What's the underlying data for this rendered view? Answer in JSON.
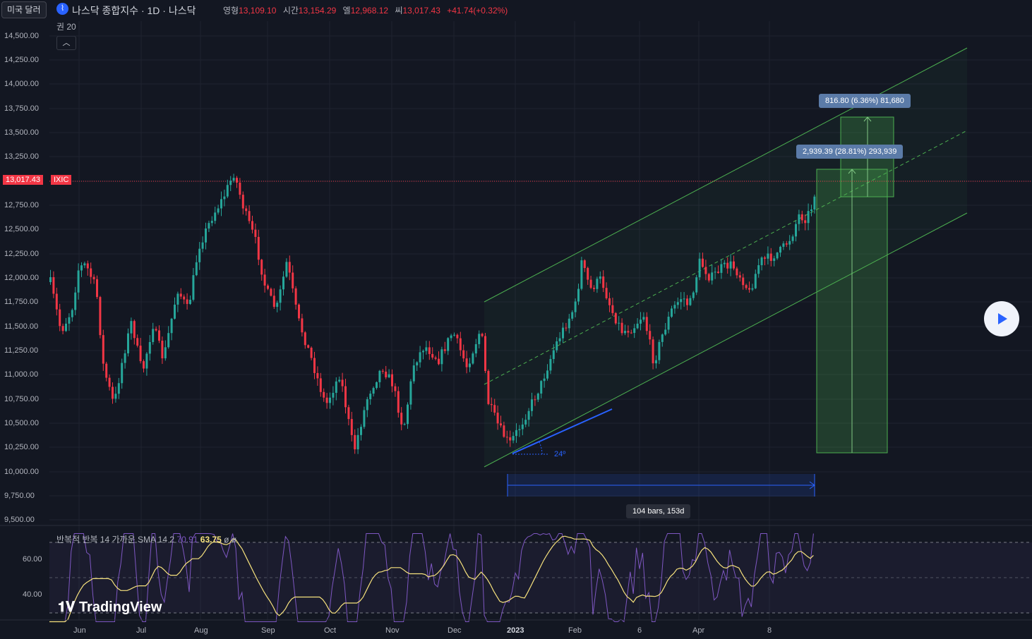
{
  "header": {
    "currency_label": "미국 달러",
    "symbol_title": "나스닥 종합지수 · 1D · 나스닥",
    "ohlc": [
      {
        "label": "영형",
        "value": "13,109.10"
      },
      {
        "label": "시간",
        "value": "13,154.29"
      },
      {
        "label": "엘",
        "value": "12,968.12"
      },
      {
        "label": "씨",
        "value": "13,017.43"
      }
    ],
    "change": "+41.74(+0.32%)",
    "volume_label": "권 20",
    "collapse_icon": "chevron-up-icon"
  },
  "price_axis": {
    "labels": [
      "14,500.00",
      "14,250.00",
      "14,000.00",
      "13,750.00",
      "13,500.00",
      "13,250.00",
      "12,750.00",
      "12,500.00",
      "12,250.00",
      "12,000.00",
      "11,750.00",
      "11,500.00",
      "11,250.00",
      "11,000.00",
      "10,750.00",
      "10,500.00",
      "10,250.00",
      "10,000.00",
      "9,750.00",
      "9,500.00"
    ],
    "current_price": "13,017.43",
    "ticker": "IXIC"
  },
  "drawings": {
    "measure_upper": "816.80 (6.36%) 81,680",
    "measure_lower": "2,939.39 (28.81%) 293,939",
    "date_range": "104 bars, 153d",
    "angle_label": "24º"
  },
  "rsi": {
    "legend_label": "반복적 반복 14 가까운 SMA 14 2",
    "rsi_value": "70.91",
    "sma_value": "63.75",
    "extra": "ø ø",
    "axis_labels": [
      "60.00",
      "40.00"
    ]
  },
  "time_axis": [
    "Jun",
    "Jul",
    "Aug",
    "Sep",
    "Oct",
    "Nov",
    "Dec",
    "2023",
    "Feb",
    "6",
    "Apr",
    "8"
  ],
  "branding": {
    "logo_text": "TradingView"
  },
  "colors": {
    "up": "#26a69a",
    "down": "#f23645",
    "background": "#131722",
    "channel": "#4caf50",
    "rsi_line": "#7e57c2",
    "rsi_sma": "#f7e27d"
  }
}
